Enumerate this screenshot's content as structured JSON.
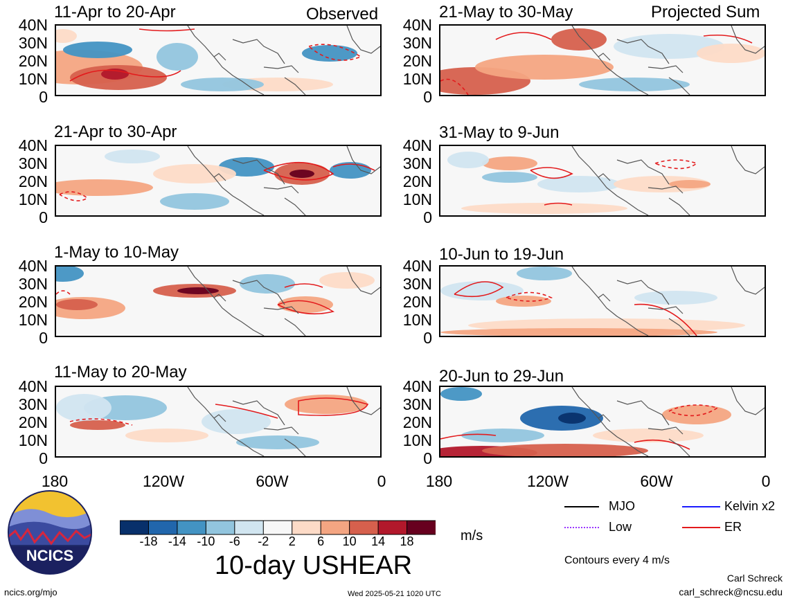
{
  "panels": [
    {
      "id": "p1",
      "title": "11-Apr to 20-Apr",
      "tag": "Observed"
    },
    {
      "id": "p2",
      "title": "21-Apr to 30-Apr",
      "tag": ""
    },
    {
      "id": "p3",
      "title": "1-May to 10-May",
      "tag": ""
    },
    {
      "id": "p4",
      "title": "11-May to 20-May",
      "tag": ""
    },
    {
      "id": "p5",
      "title": "21-May to 30-May",
      "tag": "Projected Sum"
    },
    {
      "id": "p6",
      "title": "31-May to 9-Jun",
      "tag": ""
    },
    {
      "id": "p7",
      "title": "10-Jun to 19-Jun",
      "tag": ""
    },
    {
      "id": "p8",
      "title": "20-Jun to 29-Jun",
      "tag": ""
    }
  ],
  "y_ticks": [
    "40N",
    "30N",
    "20N",
    "10N",
    "0"
  ],
  "x_ticks": [
    "180",
    "120W",
    "60W",
    "0"
  ],
  "colorbar": {
    "ticks": [
      "-18",
      "-14",
      "-10",
      "-6",
      "-2",
      "2",
      "6",
      "10",
      "14",
      "18"
    ],
    "colors": [
      "#08306b",
      "#2166ac",
      "#4393c3",
      "#92c5de",
      "#d1e5f0",
      "#f7f7f7",
      "#fddbc7",
      "#f4a582",
      "#d6604d",
      "#b2182b",
      "#67001f"
    ],
    "unit": "m/s"
  },
  "legend": {
    "items": [
      {
        "label": "MJO",
        "color": "#000000",
        "style": "solid"
      },
      {
        "label": "Kelvin x2",
        "color": "#1a1aff",
        "style": "solid"
      },
      {
        "label": "Low",
        "color": "#9933ff",
        "style": "dotted"
      },
      {
        "label": "ER",
        "color": "#e31a1c",
        "style": "solid"
      }
    ],
    "contours_note": "Contours every 4 m/s"
  },
  "main_title": "10-day USHEAR",
  "logo_text": "NCICS",
  "footer": {
    "url": "ncics.org/mjo",
    "timestamp": "Wed 2025-05-21 1020 UTC",
    "author": "Carl Schreck",
    "email": "carl_schreck@ncsu.edu"
  }
}
